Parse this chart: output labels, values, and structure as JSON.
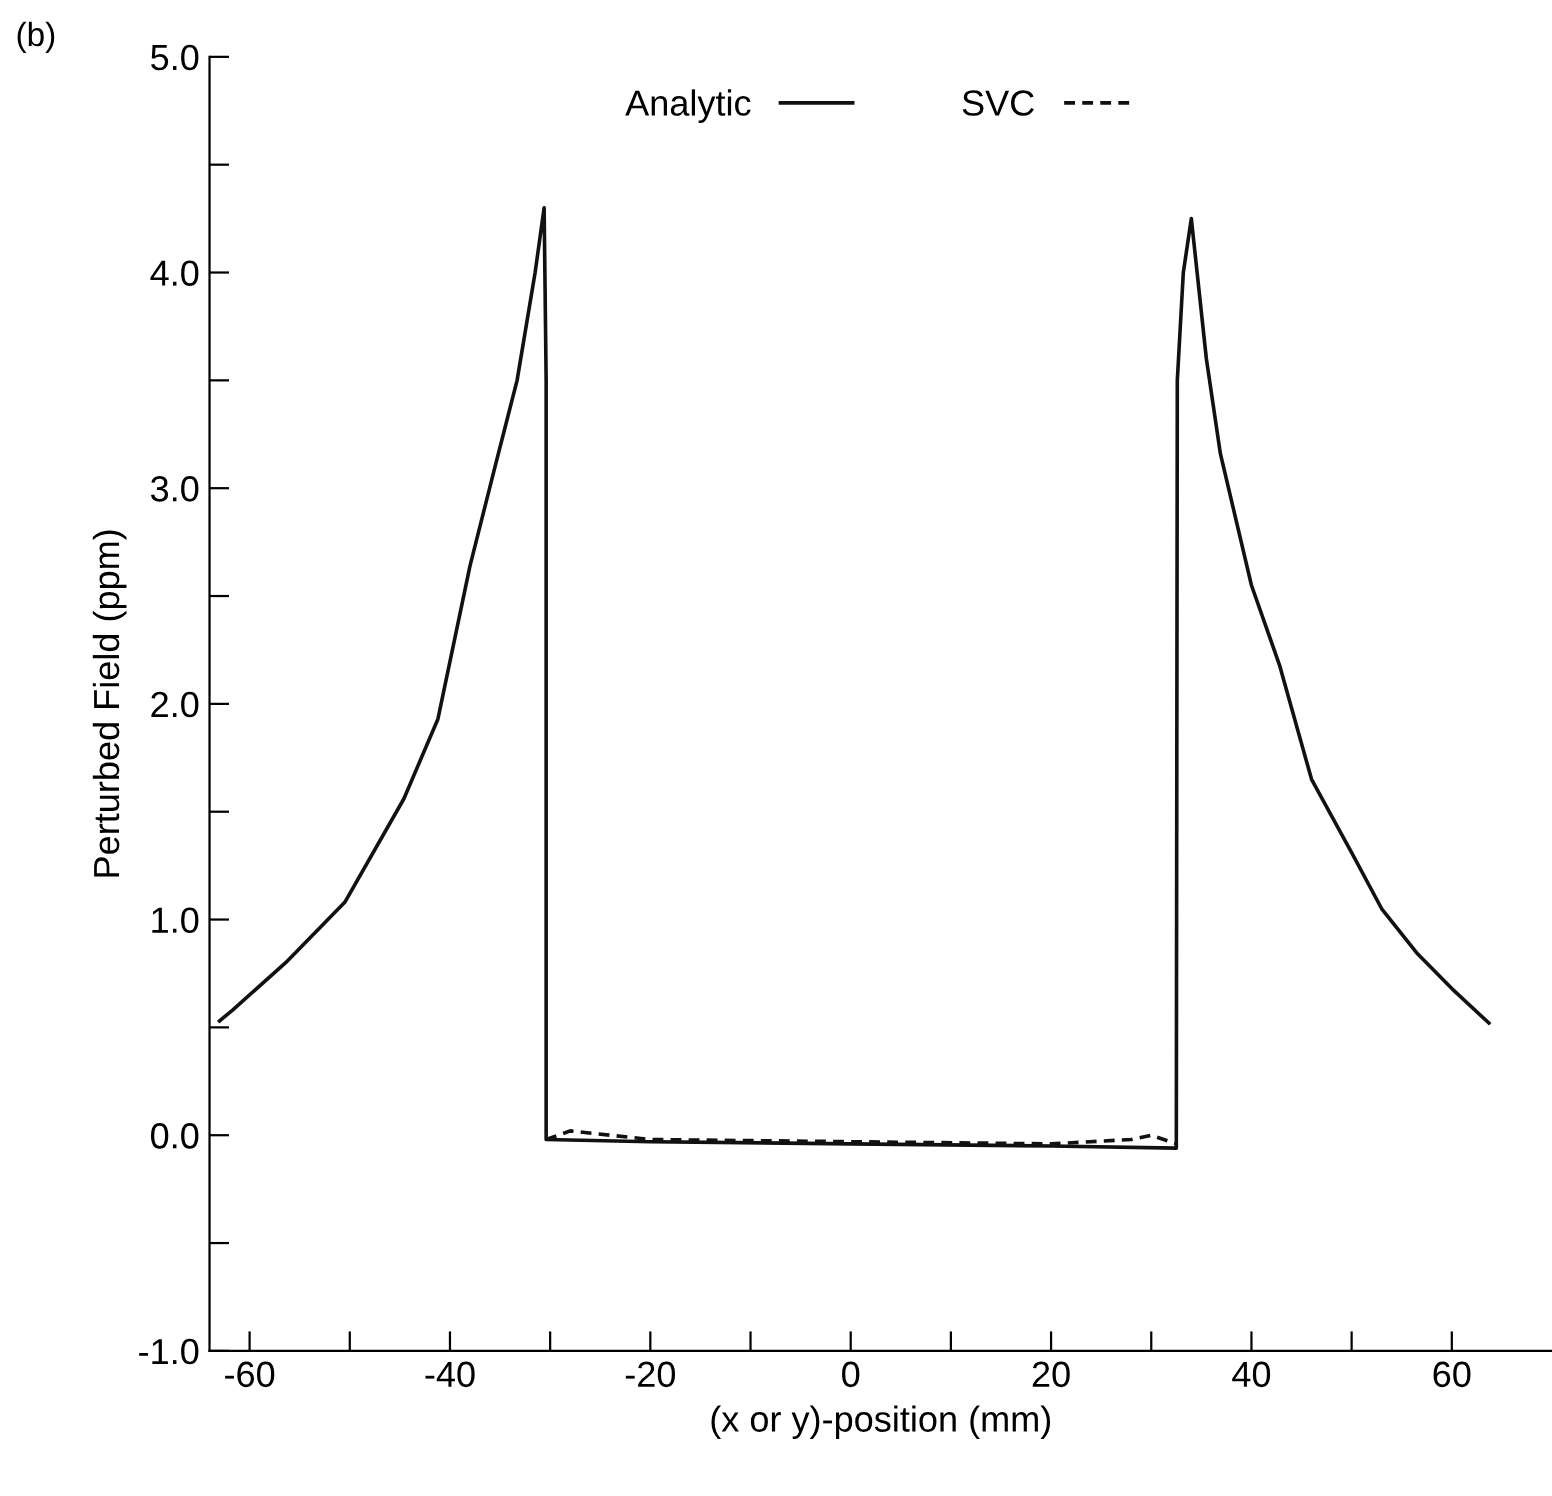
{
  "chart_data": {
    "type": "line",
    "ylabel": "Perturbed Field (ppm)",
    "xlabel": "(x or y)-position (mm)",
    "annotations": [
      "(b)"
    ],
    "xlim": [
      -64,
      70
    ],
    "ylim": [
      -1.0,
      5.0
    ],
    "xticks": [
      -60,
      {
        "value": -50,
        "label": null
      },
      -40,
      {
        "value": -30,
        "label": null
      },
      -20,
      {
        "value": -10,
        "label": null
      },
      0,
      {
        "value": 10,
        "label": null
      },
      20,
      {
        "value": 30,
        "label": null
      },
      40,
      {
        "value": 50,
        "label": null
      },
      60
    ],
    "yticks": [
      {
        "value": -1.0,
        "label": "-1.0"
      },
      {
        "value": -0.5,
        "label": null
      },
      {
        "value": 0.0,
        "label": "0.0"
      },
      {
        "value": 0.5,
        "label": null
      },
      {
        "value": 1.0,
        "label": "1.0"
      },
      {
        "value": 1.5,
        "label": null
      },
      {
        "value": 2.0,
        "label": "2.0"
      },
      {
        "value": 2.5,
        "label": null
      },
      {
        "value": 3.0,
        "label": "3.0"
      },
      {
        "value": 3.5,
        "label": null
      },
      {
        "value": 4.0,
        "label": "4.0"
      },
      {
        "value": 4.5,
        "label": null
      },
      {
        "value": 5.0,
        "label": "5.0"
      }
    ],
    "legend": "top",
    "grid": false,
    "series": [
      {
        "name": "Analytic",
        "color": "#111111",
        "line_style": "solid",
        "x": [
          -63,
          -61.7,
          -56.4,
          -50.5,
          -44.6,
          -41.2,
          -38,
          -35.5,
          -33.3,
          -31.5,
          -30.6,
          -30.4,
          -30.4,
          -20,
          0,
          20,
          32.5,
          32.6,
          33.2,
          34,
          35.5,
          36.9,
          40,
          42.8,
          46,
          50,
          53,
          56.6,
          60,
          63.7
        ],
        "values": [
          0.53,
          0.58,
          0.8,
          1.08,
          1.56,
          1.93,
          2.64,
          3.1,
          3.5,
          4.0,
          4.3,
          3.5,
          -0.02,
          -0.03,
          -0.04,
          -0.05,
          -0.06,
          3.5,
          4.0,
          4.25,
          3.6,
          3.16,
          2.55,
          2.18,
          1.65,
          1.31,
          1.05,
          0.84,
          0.68,
          0.52
        ]
      },
      {
        "name": "SVC",
        "color": "#111111",
        "line_style": "dashed",
        "x": [
          -30.4,
          -28,
          -20,
          0,
          20,
          28,
          30,
          32.5
        ],
        "values": [
          -0.02,
          0.02,
          -0.02,
          -0.03,
          -0.04,
          -0.02,
          0.0,
          -0.04
        ]
      }
    ]
  }
}
